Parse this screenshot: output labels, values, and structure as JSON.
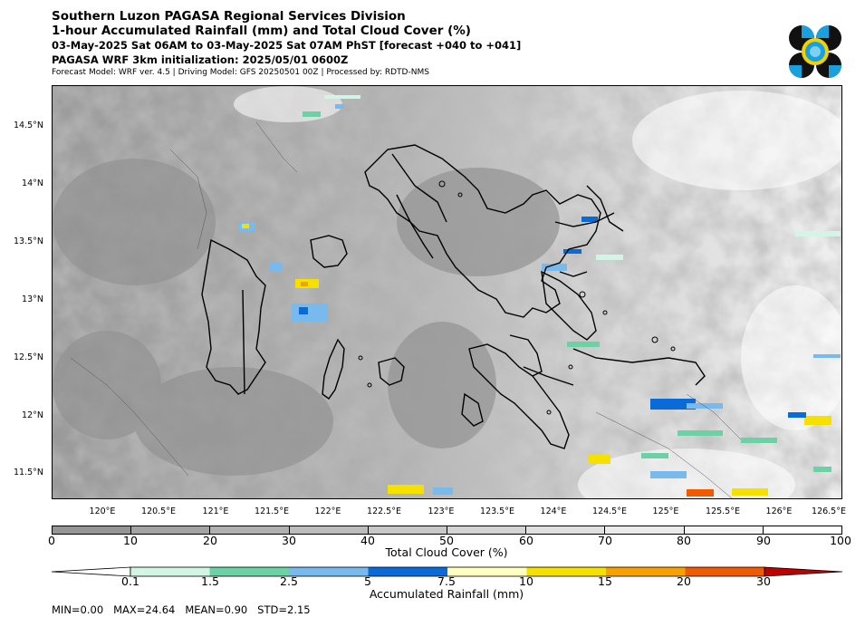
{
  "header": {
    "title": "Southern Luzon PAGASA Regional Services Division",
    "subtitle": "1-hour Accumulated Rainfall (mm) and Total Cloud Cover (%)",
    "period": "03-May-2025 Sat 06AM to 03-May-2025 Sat 07AM PhST [forecast +040 to +041]",
    "initialization": "PAGASA WRF 3km initialization: 2025/05/01 0600Z",
    "model_info": "Forecast Model: WRF ver. 4.5 | Driving Model: GFS 20250501 00Z | Processed by: RDTD-NMS"
  },
  "logo": {
    "name": "pagasa-logo",
    "colors": [
      "#111111",
      "#1aa0dc",
      "#f2d200"
    ]
  },
  "map": {
    "lat_labels": [
      "14.5°N",
      "14°N",
      "13.5°N",
      "13°N",
      "12.5°N",
      "12°N",
      "11.5°N"
    ],
    "lon_labels": [
      "120°E",
      "120.5°E",
      "121°E",
      "121.5°E",
      "122°E",
      "122.5°E",
      "123°E",
      "123.5°E",
      "124°E",
      "124.5°E",
      "125°E",
      "125.5°E",
      "126°E",
      "126.5°E"
    ]
  },
  "cloud_colorbar": {
    "title": "Total Cloud Cover (%)",
    "ticks": [
      "0",
      "10",
      "20",
      "30",
      "40",
      "50",
      "60",
      "70",
      "80",
      "90",
      "100"
    ],
    "colors": [
      "#969696",
      "#a3a3a3",
      "#b0b0b0",
      "#bcbcbc",
      "#c8c8c8",
      "#d4d4d4",
      "#e0e0e0",
      "#ebebeb",
      "#f5f5f5",
      "#ffffff"
    ]
  },
  "rain_colorbar": {
    "title": "Accumulated Rainfall (mm)",
    "ticks": [
      "0.1",
      "1.5",
      "2.5",
      "5",
      "7.5",
      "10",
      "15",
      "20",
      "30"
    ],
    "colors": [
      "#ffffff",
      "#d2f5e6",
      "#6cd2a6",
      "#78b9ee",
      "#0a6ad8",
      "#ffffc0",
      "#f6e000",
      "#f6a100",
      "#f05a00",
      "#c00000"
    ]
  },
  "stats": "MIN=0.00   MAX=24.64   MEAN=0.90   STD=2.15"
}
